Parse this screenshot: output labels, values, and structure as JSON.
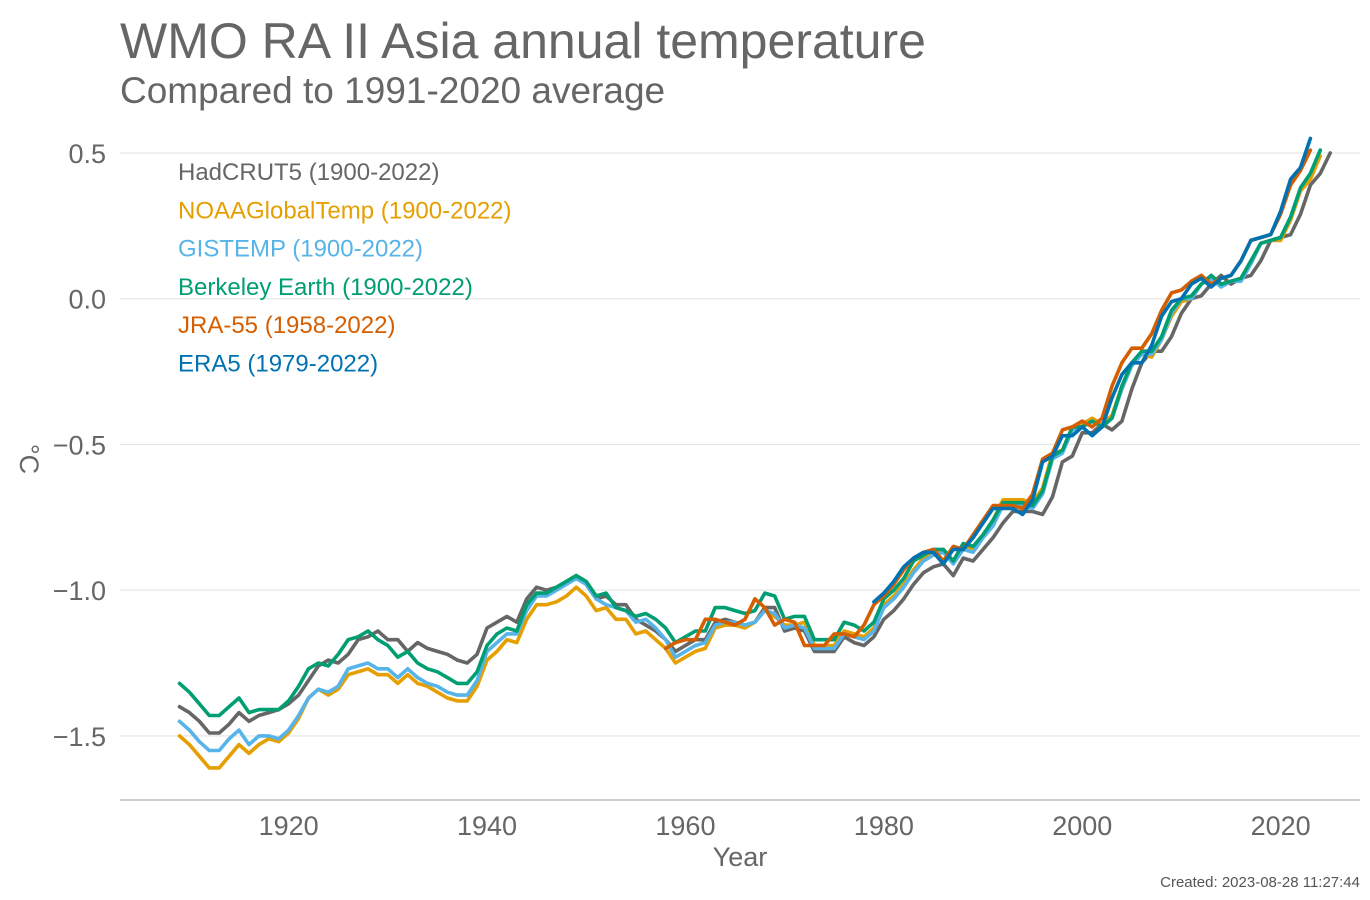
{
  "chart_data": {
    "type": "line",
    "title": "WMO RA II Asia annual temperature",
    "subtitle": "Compared to 1991-2020 average",
    "xlabel": "Year",
    "ylabel": "°C",
    "xlim": [
      1903,
      2028
    ],
    "ylim": [
      -1.72,
      0.62
    ],
    "xticks": [
      1920,
      1940,
      1960,
      1980,
      2000,
      2020
    ],
    "yticks": [
      0.5,
      0.0,
      -0.5,
      -1.0,
      -1.5
    ],
    "ytick_labels": [
      "0.5",
      "0.0",
      "−0.5",
      "−1.0",
      "−1.5"
    ],
    "grid": true,
    "legend_position": "top-left",
    "created": "Created: 2023-08-28 11:27:44",
    "series": [
      {
        "name": "HadCRUT5 (1900-2022)",
        "color": "#666666",
        "x_start": 1909,
        "values": [
          -1.4,
          -1.42,
          -1.45,
          -1.49,
          -1.49,
          -1.46,
          -1.42,
          -1.45,
          -1.43,
          -1.42,
          -1.41,
          -1.39,
          -1.36,
          -1.31,
          -1.26,
          -1.24,
          -1.25,
          -1.22,
          -1.17,
          -1.16,
          -1.14,
          -1.17,
          -1.17,
          -1.21,
          -1.18,
          -1.2,
          -1.21,
          -1.22,
          -1.24,
          -1.25,
          -1.22,
          -1.13,
          -1.11,
          -1.09,
          -1.11,
          -1.03,
          -0.99,
          -1.0,
          -0.99,
          -0.97,
          -0.95,
          -0.98,
          -1.03,
          -1.02,
          -1.05,
          -1.05,
          -1.1,
          -1.12,
          -1.14,
          -1.17,
          -1.21,
          -1.19,
          -1.17,
          -1.17,
          -1.11,
          -1.1,
          -1.11,
          -1.12,
          -1.11,
          -1.06,
          -1.06,
          -1.14,
          -1.13,
          -1.14,
          -1.21,
          -1.21,
          -1.21,
          -1.16,
          -1.18,
          -1.19,
          -1.16,
          -1.1,
          -1.07,
          -1.03,
          -0.98,
          -0.94,
          -0.92,
          -0.91,
          -0.95,
          -0.89,
          -0.9,
          -0.86,
          -0.82,
          -0.77,
          -0.73,
          -0.73,
          -0.73,
          -0.74,
          -0.68,
          -0.56,
          -0.54,
          -0.46,
          -0.46,
          -0.43,
          -0.45,
          -0.42,
          -0.31,
          -0.22,
          -0.18,
          -0.18,
          -0.13,
          -0.05,
          0.0,
          0.01,
          0.05,
          0.08,
          0.05,
          0.07,
          0.08,
          0.13,
          0.2,
          0.21,
          0.22,
          0.29,
          0.39,
          0.43,
          0.5
        ]
      },
      {
        "name": "NOAAGlobalTemp (1900-2022)",
        "color": "#E69F00",
        "x_start": 1909,
        "values": [
          -1.5,
          -1.53,
          -1.57,
          -1.61,
          -1.61,
          -1.57,
          -1.53,
          -1.56,
          -1.53,
          -1.51,
          -1.52,
          -1.49,
          -1.44,
          -1.37,
          -1.34,
          -1.36,
          -1.34,
          -1.29,
          -1.28,
          -1.27,
          -1.29,
          -1.29,
          -1.32,
          -1.29,
          -1.32,
          -1.33,
          -1.35,
          -1.37,
          -1.38,
          -1.38,
          -1.33,
          -1.24,
          -1.21,
          -1.17,
          -1.18,
          -1.1,
          -1.05,
          -1.05,
          -1.04,
          -1.02,
          -0.99,
          -1.02,
          -1.07,
          -1.06,
          -1.1,
          -1.1,
          -1.15,
          -1.14,
          -1.17,
          -1.2,
          -1.25,
          -1.23,
          -1.21,
          -1.2,
          -1.13,
          -1.12,
          -1.12,
          -1.13,
          -1.11,
          -1.07,
          -1.09,
          -1.12,
          -1.12,
          -1.11,
          -1.19,
          -1.19,
          -1.19,
          -1.14,
          -1.15,
          -1.16,
          -1.13,
          -1.05,
          -1.02,
          -0.98,
          -0.93,
          -0.89,
          -0.87,
          -0.86,
          -0.9,
          -0.85,
          -0.86,
          -0.81,
          -0.76,
          -0.69,
          -0.69,
          -0.69,
          -0.7,
          -0.65,
          -0.53,
          -0.52,
          -0.44,
          -0.43,
          -0.41,
          -0.43,
          -0.4,
          -0.3,
          -0.22,
          -0.19,
          -0.2,
          -0.14,
          -0.06,
          -0.01,
          0.0,
          0.05,
          0.07,
          0.05,
          0.06,
          0.07,
          0.12,
          0.19,
          0.2,
          0.2,
          0.27,
          0.37,
          0.41,
          0.49
        ]
      },
      {
        "name": "GISTEMP (1900-2022)",
        "color": "#56B4E9",
        "x_start": 1909,
        "values": [
          -1.45,
          -1.48,
          -1.52,
          -1.55,
          -1.55,
          -1.51,
          -1.48,
          -1.53,
          -1.5,
          -1.5,
          -1.51,
          -1.48,
          -1.43,
          -1.37,
          -1.34,
          -1.35,
          -1.33,
          -1.27,
          -1.26,
          -1.25,
          -1.27,
          -1.27,
          -1.3,
          -1.27,
          -1.3,
          -1.32,
          -1.33,
          -1.35,
          -1.36,
          -1.36,
          -1.31,
          -1.21,
          -1.18,
          -1.15,
          -1.15,
          -1.07,
          -1.02,
          -1.02,
          -1.0,
          -0.98,
          -0.96,
          -0.98,
          -1.03,
          -1.05,
          -1.06,
          -1.07,
          -1.11,
          -1.1,
          -1.13,
          -1.17,
          -1.23,
          -1.21,
          -1.19,
          -1.18,
          -1.12,
          -1.11,
          -1.11,
          -1.12,
          -1.11,
          -1.07,
          -1.08,
          -1.13,
          -1.12,
          -1.13,
          -1.2,
          -1.2,
          -1.2,
          -1.15,
          -1.16,
          -1.17,
          -1.14,
          -1.06,
          -1.03,
          -0.99,
          -0.94,
          -0.9,
          -0.88,
          -0.87,
          -0.91,
          -0.86,
          -0.87,
          -0.82,
          -0.78,
          -0.71,
          -0.71,
          -0.71,
          -0.72,
          -0.67,
          -0.55,
          -0.53,
          -0.45,
          -0.44,
          -0.42,
          -0.44,
          -0.41,
          -0.31,
          -0.23,
          -0.19,
          -0.19,
          -0.14,
          -0.05,
          -0.0,
          0.0,
          0.05,
          0.07,
          0.04,
          0.06,
          0.06,
          0.12,
          0.19,
          0.2,
          0.21,
          0.28,
          0.38,
          0.43,
          0.51
        ]
      },
      {
        "name": "Berkeley Earth (1900-2022)",
        "color": "#009E73",
        "x_start": 1909,
        "values": [
          -1.32,
          -1.35,
          -1.39,
          -1.43,
          -1.43,
          -1.4,
          -1.37,
          -1.42,
          -1.41,
          -1.41,
          -1.41,
          -1.38,
          -1.33,
          -1.27,
          -1.25,
          -1.26,
          -1.22,
          -1.17,
          -1.16,
          -1.14,
          -1.17,
          -1.19,
          -1.23,
          -1.21,
          -1.25,
          -1.27,
          -1.28,
          -1.3,
          -1.32,
          -1.32,
          -1.28,
          -1.19,
          -1.15,
          -1.13,
          -1.14,
          -1.05,
          -1.01,
          -1.01,
          -0.99,
          -0.97,
          -0.95,
          -0.97,
          -1.02,
          -1.01,
          -1.06,
          -1.07,
          -1.09,
          -1.08,
          -1.1,
          -1.13,
          -1.18,
          -1.16,
          -1.14,
          -1.14,
          -1.06,
          -1.06,
          -1.07,
          -1.08,
          -1.07,
          -1.01,
          -1.02,
          -1.1,
          -1.09,
          -1.09,
          -1.17,
          -1.17,
          -1.17,
          -1.11,
          -1.12,
          -1.14,
          -1.11,
          -1.03,
          -1.0,
          -0.96,
          -0.9,
          -0.88,
          -0.86,
          -0.86,
          -0.9,
          -0.84,
          -0.85,
          -0.81,
          -0.76,
          -0.7,
          -0.7,
          -0.7,
          -0.71,
          -0.66,
          -0.54,
          -0.52,
          -0.44,
          -0.44,
          -0.42,
          -0.44,
          -0.41,
          -0.3,
          -0.22,
          -0.18,
          -0.18,
          -0.13,
          -0.04,
          0.0,
          0.01,
          0.05,
          0.08,
          0.05,
          0.06,
          0.07,
          0.13,
          0.19,
          0.2,
          0.21,
          0.28,
          0.38,
          0.43,
          0.51
        ]
      },
      {
        "name": "JRA-55 (1958-2022)",
        "color": "#D55E00",
        "x_start": 1958,
        "values": [
          -1.2,
          -1.18,
          -1.17,
          -1.17,
          -1.1,
          -1.1,
          -1.11,
          -1.12,
          -1.1,
          -1.03,
          -1.06,
          -1.12,
          -1.1,
          -1.11,
          -1.19,
          -1.19,
          -1.19,
          -1.15,
          -1.15,
          -1.16,
          -1.12,
          -1.05,
          -1.02,
          -0.98,
          -0.93,
          -0.89,
          -0.87,
          -0.86,
          -0.9,
          -0.85,
          -0.86,
          -0.81,
          -0.76,
          -0.71,
          -0.71,
          -0.71,
          -0.72,
          -0.67,
          -0.55,
          -0.53,
          -0.45,
          -0.44,
          -0.42,
          -0.44,
          -0.41,
          -0.3,
          -0.22,
          -0.17,
          -0.17,
          -0.12,
          -0.04,
          0.02,
          0.03,
          0.06,
          0.08,
          0.05,
          0.07,
          0.08,
          0.13,
          0.2,
          0.21,
          0.22,
          0.29,
          0.39,
          0.44,
          0.51
        ]
      },
      {
        "name": "ERA5 (1979-2022)",
        "color": "#0072B2",
        "x_start": 1979,
        "values": [
          -1.04,
          -1.01,
          -0.97,
          -0.92,
          -0.89,
          -0.87,
          -0.87,
          -0.91,
          -0.86,
          -0.86,
          -0.82,
          -0.77,
          -0.72,
          -0.72,
          -0.72,
          -0.74,
          -0.69,
          -0.56,
          -0.54,
          -0.47,
          -0.47,
          -0.44,
          -0.47,
          -0.44,
          -0.34,
          -0.26,
          -0.22,
          -0.22,
          -0.16,
          -0.06,
          -0.01,
          0.0,
          0.05,
          0.07,
          0.04,
          0.07,
          0.08,
          0.13,
          0.2,
          0.21,
          0.22,
          0.3,
          0.41,
          0.45,
          0.55
        ]
      }
    ]
  }
}
